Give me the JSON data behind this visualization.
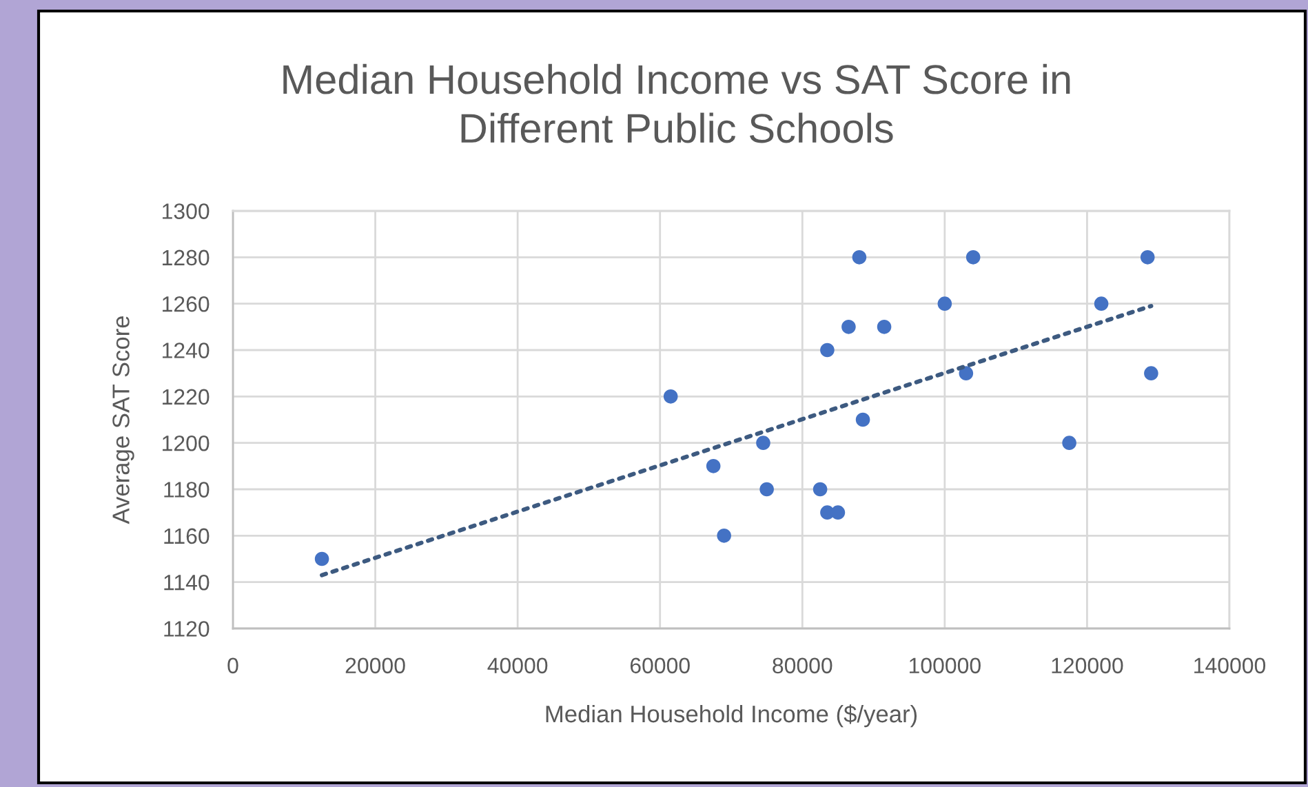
{
  "chart_data": {
    "type": "scatter",
    "title": "Median Household Income vs SAT Score in\nDifferent Public Schools",
    "xlabel": "Median Household Income ($/year)",
    "ylabel": "Average SAT Score",
    "xlim": [
      0,
      140000
    ],
    "ylim": [
      1120,
      1300
    ],
    "xticks": [
      0,
      20000,
      40000,
      60000,
      80000,
      100000,
      120000,
      140000
    ],
    "yticks": [
      1120,
      1140,
      1160,
      1180,
      1200,
      1220,
      1240,
      1260,
      1280,
      1300
    ],
    "grid": true,
    "marker": "circle",
    "series": [
      {
        "color": "#4472c4",
        "x": [
          12500,
          61500,
          88000,
          104000,
          128500,
          100000,
          122000,
          86500,
          91500,
          83500,
          103000,
          129000,
          88500,
          74500,
          117500,
          67500,
          75000,
          82500,
          83500,
          85000,
          69000
        ],
        "values": [
          1150,
          1220,
          1280,
          1280,
          1280,
          1260,
          1260,
          1250,
          1250,
          1240,
          1230,
          1230,
          1210,
          1200,
          1200,
          1190,
          1180,
          1180,
          1170,
          1170,
          1160
        ]
      },
      {
        "type": "line",
        "color": "#3d5a80",
        "line_style": "dotted",
        "marker": "none",
        "x": [
          12500,
          129000
        ],
        "values": [
          1143,
          1259
        ]
      }
    ]
  }
}
